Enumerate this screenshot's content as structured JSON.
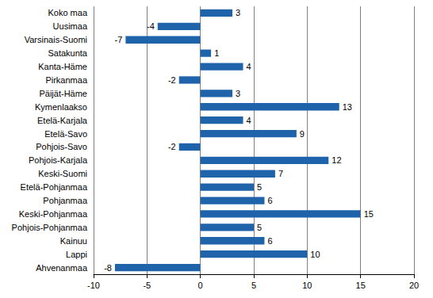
{
  "chart_data": {
    "type": "bar",
    "orientation": "horizontal",
    "categories": [
      "Koko maa",
      "Uusimaa",
      "Varsinais-Suomi",
      "Satakunta",
      "Kanta-Häme",
      "Pirkanmaa",
      "Päijät-Häme",
      "Kymenlaakso",
      "Etelä-Karjala",
      "Etelä-Savo",
      "Pohjois-Savo",
      "Pohjois-Karjala",
      "Keski-Suomi",
      "Etelä-Pohjanmaa",
      "Pohjanmaa",
      "Keski-Pohjanmaa",
      "Pohjois-Pohjanmaa",
      "Kainuu",
      "Lappi",
      "Ahvenanmaa"
    ],
    "values": [
      3,
      -4,
      -7,
      1,
      4,
      -2,
      3,
      13,
      4,
      9,
      -2,
      12,
      7,
      5,
      6,
      15,
      5,
      6,
      10,
      -8
    ],
    "color": "#1f63ab",
    "xlim": [
      -10,
      20
    ],
    "xticks": [
      -10,
      -5,
      0,
      5,
      10,
      15,
      20
    ],
    "grid": true,
    "data_labels": true
  }
}
